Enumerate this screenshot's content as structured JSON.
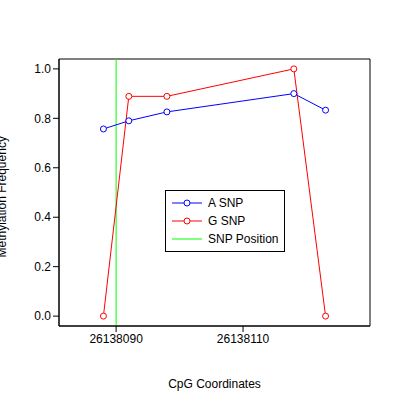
{
  "chart_data": {
    "type": "line",
    "x_label": "CpG Coordinates",
    "y_label": "Methylation Frequency",
    "x": [
      26138088,
      26138092,
      26138098,
      26138118,
      26138123
    ],
    "series": [
      {
        "name": "A SNP",
        "color": "#0000ff",
        "marker": "circle",
        "values": [
          0.757,
          0.79,
          0.826,
          0.9,
          0.833
        ]
      },
      {
        "name": "G SNP",
        "color": "#ff0000",
        "marker": "circle",
        "values": [
          0.0,
          0.889,
          0.889,
          1.0,
          0.0
        ]
      }
    ],
    "vlines": [
      {
        "name": "SNP Position",
        "x": 26138090,
        "color": "#00ff00"
      }
    ],
    "xlim": [
      26138081,
      26138130
    ],
    "xticks": [
      26138090,
      26138110
    ],
    "ylim": [
      -0.04,
      1.04
    ],
    "yticks": [
      {
        "value": 0,
        "label": "0.0"
      },
      {
        "value": 0.2,
        "label": "0.2"
      },
      {
        "value": 0.4,
        "label": "0.4"
      },
      {
        "value": 0.6,
        "label": "0.6"
      },
      {
        "value": 0.8,
        "label": "0.8"
      },
      {
        "value": 1,
        "label": "1.0"
      }
    ],
    "grid": false,
    "legend": "right"
  }
}
